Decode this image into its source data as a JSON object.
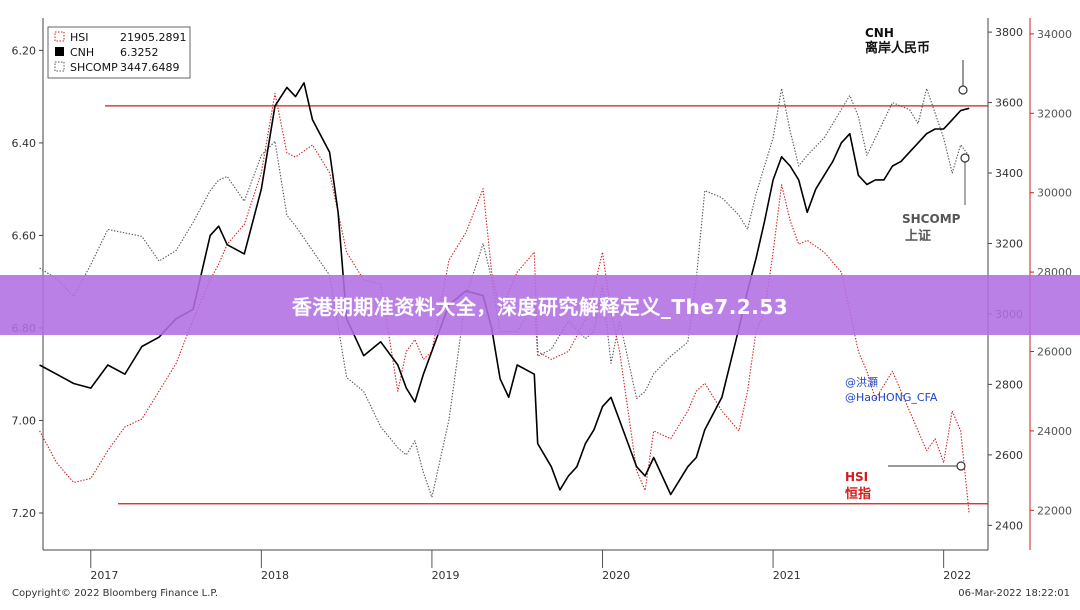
{
  "banner": {
    "title": "香港期期准资料大全，深度研究解释定义_The7.2.53"
  },
  "footer": {
    "copyright": "Copyright© 2022 Bloomberg Finance L.P.",
    "timestamp": "06-Mar-2022 18:22:01"
  },
  "colors": {
    "hsi": "#d21d1d",
    "cnh": "#000000",
    "shcomp": "#555555",
    "reference": "#d21d1d",
    "banner": "#b26ee1"
  },
  "chart_data": {
    "type": "line",
    "legend_position": "top-left",
    "legend": [
      {
        "name": "HSI",
        "value": "21905.2891"
      },
      {
        "name": "CNH",
        "value": "6.3252"
      },
      {
        "name": "SHCOMP",
        "value": "3447.6489"
      }
    ],
    "x_ticks": [
      "2017",
      "2018",
      "2019",
      "2020",
      "2021",
      "2022"
    ],
    "axes": {
      "cnh": {
        "side": "left",
        "inverted": true,
        "range": [
          6.13,
          7.28
        ],
        "ticks": [
          "6.20",
          "6.40",
          "6.60",
          "6.80",
          "7.00",
          "7.20"
        ]
      },
      "shcomp": {
        "side": "right-inner",
        "range": [
          2330,
          3840
        ],
        "ticks": [
          "2400",
          "2600",
          "2800",
          "3000",
          "3200",
          "3400",
          "3600",
          "3800"
        ]
      },
      "hsi": {
        "side": "right-outer",
        "range": [
          21000,
          34400
        ],
        "ticks": [
          "22000",
          "24000",
          "26000",
          "28000",
          "30000",
          "32000",
          "34000"
        ]
      }
    },
    "reference_lines": [
      {
        "axis": "cnh",
        "value": 6.32
      },
      {
        "axis": "cnh",
        "value": 7.18
      }
    ],
    "annotations": [
      {
        "series": "CNH",
        "label": "CNH",
        "sublabel": "离岸人民币"
      },
      {
        "series": "SHCOMP",
        "label": "SHCOMP",
        "sublabel": "上证"
      },
      {
        "series": "HSI",
        "label": "HSI",
        "sublabel": "恒指"
      }
    ],
    "credit": [
      "@洪灝",
      "@HaoHONG_CFA"
    ],
    "series": [
      {
        "name": "CNH",
        "axis": "cnh",
        "style": "solid",
        "points": [
          [
            2016.7,
            6.88
          ],
          [
            2016.8,
            6.9
          ],
          [
            2016.9,
            6.92
          ],
          [
            2017.0,
            6.93
          ],
          [
            2017.1,
            6.88
          ],
          [
            2017.2,
            6.9
          ],
          [
            2017.3,
            6.84
          ],
          [
            2017.4,
            6.82
          ],
          [
            2017.5,
            6.78
          ],
          [
            2017.6,
            6.76
          ],
          [
            2017.7,
            6.6
          ],
          [
            2017.75,
            6.58
          ],
          [
            2017.8,
            6.62
          ],
          [
            2017.9,
            6.64
          ],
          [
            2018.0,
            6.5
          ],
          [
            2018.08,
            6.32
          ],
          [
            2018.15,
            6.28
          ],
          [
            2018.2,
            6.3
          ],
          [
            2018.25,
            6.27
          ],
          [
            2018.3,
            6.35
          ],
          [
            2018.4,
            6.42
          ],
          [
            2018.45,
            6.55
          ],
          [
            2018.5,
            6.78
          ],
          [
            2018.6,
            6.86
          ],
          [
            2018.7,
            6.83
          ],
          [
            2018.8,
            6.88
          ],
          [
            2018.85,
            6.93
          ],
          [
            2018.9,
            6.96
          ],
          [
            2018.95,
            6.9
          ],
          [
            2019.0,
            6.85
          ],
          [
            2019.1,
            6.75
          ],
          [
            2019.2,
            6.72
          ],
          [
            2019.3,
            6.73
          ],
          [
            2019.35,
            6.8
          ],
          [
            2019.4,
            6.91
          ],
          [
            2019.45,
            6.95
          ],
          [
            2019.5,
            6.88
          ],
          [
            2019.6,
            6.9
          ],
          [
            2019.62,
            7.05
          ],
          [
            2019.7,
            7.1
          ],
          [
            2019.75,
            7.15
          ],
          [
            2019.8,
            7.12
          ],
          [
            2019.85,
            7.1
          ],
          [
            2019.9,
            7.05
          ],
          [
            2019.95,
            7.02
          ],
          [
            2020.0,
            6.97
          ],
          [
            2020.05,
            6.95
          ],
          [
            2020.1,
            7.0
          ],
          [
            2020.15,
            7.05
          ],
          [
            2020.2,
            7.1
          ],
          [
            2020.25,
            7.12
          ],
          [
            2020.3,
            7.08
          ],
          [
            2020.4,
            7.16
          ],
          [
            2020.45,
            7.13
          ],
          [
            2020.5,
            7.1
          ],
          [
            2020.55,
            7.08
          ],
          [
            2020.6,
            7.02
          ],
          [
            2020.7,
            6.95
          ],
          [
            2020.8,
            6.8
          ],
          [
            2020.85,
            6.72
          ],
          [
            2020.9,
            6.65
          ],
          [
            2020.95,
            6.57
          ],
          [
            2021.0,
            6.48
          ],
          [
            2021.05,
            6.43
          ],
          [
            2021.1,
            6.45
          ],
          [
            2021.15,
            6.48
          ],
          [
            2021.2,
            6.55
          ],
          [
            2021.25,
            6.5
          ],
          [
            2021.3,
            6.47
          ],
          [
            2021.35,
            6.44
          ],
          [
            2021.4,
            6.4
          ],
          [
            2021.45,
            6.38
          ],
          [
            2021.5,
            6.47
          ],
          [
            2021.55,
            6.49
          ],
          [
            2021.6,
            6.48
          ],
          [
            2021.65,
            6.48
          ],
          [
            2021.7,
            6.45
          ],
          [
            2021.75,
            6.44
          ],
          [
            2021.8,
            6.42
          ],
          [
            2021.85,
            6.4
          ],
          [
            2021.9,
            6.38
          ],
          [
            2021.95,
            6.37
          ],
          [
            2022.0,
            6.37
          ],
          [
            2022.05,
            6.35
          ],
          [
            2022.1,
            6.33
          ],
          [
            2022.15,
            6.3252
          ]
        ]
      },
      {
        "name": "HSI",
        "axis": "hsi",
        "style": "dotted",
        "points": [
          [
            2016.7,
            24000
          ],
          [
            2016.8,
            23200
          ],
          [
            2016.9,
            22700
          ],
          [
            2017.0,
            22800
          ],
          [
            2017.1,
            23500
          ],
          [
            2017.2,
            24100
          ],
          [
            2017.3,
            24300
          ],
          [
            2017.4,
            25000
          ],
          [
            2017.5,
            25700
          ],
          [
            2017.6,
            26800
          ],
          [
            2017.7,
            27800
          ],
          [
            2017.75,
            28200
          ],
          [
            2017.8,
            28700
          ],
          [
            2017.9,
            29200
          ],
          [
            2018.0,
            30500
          ],
          [
            2018.08,
            32500
          ],
          [
            2018.15,
            31000
          ],
          [
            2018.2,
            30900
          ],
          [
            2018.3,
            31200
          ],
          [
            2018.4,
            30500
          ],
          [
            2018.5,
            28500
          ],
          [
            2018.6,
            27800
          ],
          [
            2018.7,
            27700
          ],
          [
            2018.8,
            25000
          ],
          [
            2018.85,
            26000
          ],
          [
            2018.9,
            26300
          ],
          [
            2018.95,
            25800
          ],
          [
            2019.0,
            26000
          ],
          [
            2019.1,
            28300
          ],
          [
            2019.2,
            29000
          ],
          [
            2019.3,
            30100
          ],
          [
            2019.35,
            28000
          ],
          [
            2019.4,
            27000
          ],
          [
            2019.5,
            28000
          ],
          [
            2019.6,
            28500
          ],
          [
            2019.62,
            26000
          ],
          [
            2019.7,
            25800
          ],
          [
            2019.8,
            26000
          ],
          [
            2019.9,
            26800
          ],
          [
            2019.95,
            27600
          ],
          [
            2020.0,
            28500
          ],
          [
            2020.05,
            27000
          ],
          [
            2020.1,
            26000
          ],
          [
            2020.2,
            23000
          ],
          [
            2020.25,
            22500
          ],
          [
            2020.3,
            24000
          ],
          [
            2020.4,
            23800
          ],
          [
            2020.5,
            24500
          ],
          [
            2020.55,
            25000
          ],
          [
            2020.6,
            25200
          ],
          [
            2020.7,
            24500
          ],
          [
            2020.8,
            24000
          ],
          [
            2020.85,
            25000
          ],
          [
            2020.9,
            26500
          ],
          [
            2020.95,
            27000
          ],
          [
            2021.0,
            28500
          ],
          [
            2021.05,
            30200
          ],
          [
            2021.1,
            29300
          ],
          [
            2021.15,
            28700
          ],
          [
            2021.2,
            28800
          ],
          [
            2021.3,
            28500
          ],
          [
            2021.4,
            28000
          ],
          [
            2021.45,
            27000
          ],
          [
            2021.5,
            26000
          ],
          [
            2021.55,
            25500
          ],
          [
            2021.6,
            24800
          ],
          [
            2021.7,
            25500
          ],
          [
            2021.8,
            24500
          ],
          [
            2021.85,
            24000
          ],
          [
            2021.9,
            23500
          ],
          [
            2021.95,
            23800
          ],
          [
            2022.0,
            23200
          ],
          [
            2022.05,
            24500
          ],
          [
            2022.1,
            24000
          ],
          [
            2022.15,
            21905
          ]
        ]
      },
      {
        "name": "SHCOMP",
        "axis": "shcomp",
        "style": "dotted",
        "points": [
          [
            2016.7,
            3130
          ],
          [
            2016.8,
            3100
          ],
          [
            2016.9,
            3050
          ],
          [
            2017.0,
            3140
          ],
          [
            2017.1,
            3240
          ],
          [
            2017.2,
            3230
          ],
          [
            2017.3,
            3220
          ],
          [
            2017.4,
            3150
          ],
          [
            2017.5,
            3180
          ],
          [
            2017.6,
            3260
          ],
          [
            2017.7,
            3350
          ],
          [
            2017.75,
            3380
          ],
          [
            2017.8,
            3390
          ],
          [
            2017.9,
            3320
          ],
          [
            2018.0,
            3450
          ],
          [
            2018.08,
            3490
          ],
          [
            2018.15,
            3280
          ],
          [
            2018.2,
            3250
          ],
          [
            2018.3,
            3180
          ],
          [
            2018.4,
            3110
          ],
          [
            2018.5,
            2820
          ],
          [
            2018.6,
            2780
          ],
          [
            2018.7,
            2680
          ],
          [
            2018.8,
            2620
          ],
          [
            2018.85,
            2600
          ],
          [
            2018.9,
            2640
          ],
          [
            2018.95,
            2550
          ],
          [
            2019.0,
            2480
          ],
          [
            2019.1,
            2700
          ],
          [
            2019.2,
            3050
          ],
          [
            2019.3,
            3200
          ],
          [
            2019.35,
            3100
          ],
          [
            2019.4,
            2950
          ],
          [
            2019.5,
            2950
          ],
          [
            2019.6,
            3030
          ],
          [
            2019.62,
            2880
          ],
          [
            2019.7,
            2900
          ],
          [
            2019.8,
            2980
          ],
          [
            2019.9,
            2930
          ],
          [
            2019.95,
            2950
          ],
          [
            2020.0,
            3080
          ],
          [
            2020.05,
            2860
          ],
          [
            2020.1,
            2980
          ],
          [
            2020.2,
            2760
          ],
          [
            2020.25,
            2780
          ],
          [
            2020.3,
            2830
          ],
          [
            2020.4,
            2880
          ],
          [
            2020.5,
            2920
          ],
          [
            2020.55,
            3100
          ],
          [
            2020.6,
            3350
          ],
          [
            2020.7,
            3330
          ],
          [
            2020.8,
            3280
          ],
          [
            2020.85,
            3240
          ],
          [
            2020.9,
            3340
          ],
          [
            2020.95,
            3420
          ],
          [
            2021.0,
            3500
          ],
          [
            2021.05,
            3640
          ],
          [
            2021.1,
            3520
          ],
          [
            2021.15,
            3420
          ],
          [
            2021.2,
            3450
          ],
          [
            2021.3,
            3500
          ],
          [
            2021.4,
            3580
          ],
          [
            2021.45,
            3620
          ],
          [
            2021.5,
            3560
          ],
          [
            2021.55,
            3450
          ],
          [
            2021.6,
            3500
          ],
          [
            2021.7,
            3600
          ],
          [
            2021.8,
            3580
          ],
          [
            2021.85,
            3540
          ],
          [
            2021.9,
            3640
          ],
          [
            2021.95,
            3570
          ],
          [
            2022.0,
            3500
          ],
          [
            2022.05,
            3400
          ],
          [
            2022.1,
            3480
          ],
          [
            2022.15,
            3448
          ]
        ]
      }
    ]
  }
}
